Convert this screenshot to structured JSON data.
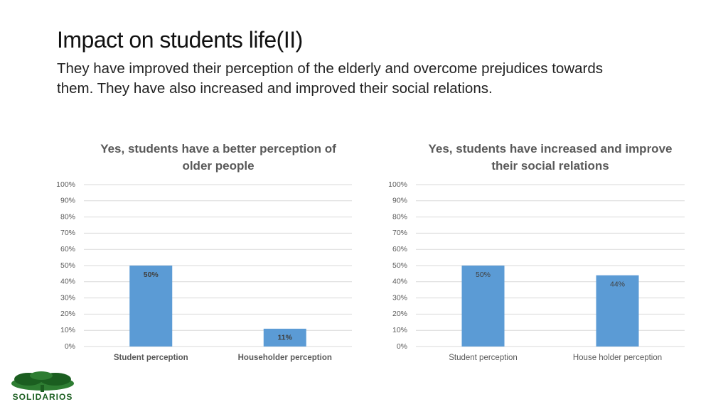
{
  "header": {
    "title": "Impact on students life(II)",
    "subtitle": "They have improved their perception of the elderly and overcome prejudices towards them. They have also increased and improved their social relations."
  },
  "logo": {
    "text": "SOLIDARIOS"
  },
  "chart_data": [
    {
      "type": "bar",
      "title": "Yes, students have a better perception of older people",
      "categories": [
        "Student perception",
        "Householder perception"
      ],
      "values": [
        50,
        11
      ],
      "value_labels": [
        "50%",
        "11%"
      ],
      "color": "#5b9bd5",
      "ylim": [
        0,
        100
      ],
      "yticks": [
        {
          "value": 0,
          "label": "0%"
        },
        {
          "value": 10,
          "label": "10%"
        },
        {
          "value": 20,
          "label": "20%"
        },
        {
          "value": 30,
          "label": "30%"
        },
        {
          "value": 40,
          "label": "40%"
        },
        {
          "value": 50,
          "label": "50%"
        },
        {
          "value": 60,
          "label": "60%"
        },
        {
          "value": 70,
          "label": "70%"
        },
        {
          "value": 80,
          "label": "80%"
        },
        {
          "value": 90,
          "label": "90%"
        },
        {
          "value": 100,
          "label": "100%"
        }
      ],
      "grid": true
    },
    {
      "type": "bar",
      "title": "Yes, students have increased and improve their social relations",
      "categories": [
        "Student perception",
        "House holder perception"
      ],
      "values": [
        50,
        44
      ],
      "value_labels": [
        "50%",
        "44%"
      ],
      "color": "#5b9bd5",
      "ylim": [
        0,
        100
      ],
      "yticks": [
        {
          "value": 0,
          "label": "0%"
        },
        {
          "value": 10,
          "label": "10%"
        },
        {
          "value": 20,
          "label": "20%"
        },
        {
          "value": 30,
          "label": "30%"
        },
        {
          "value": 40,
          "label": "40%"
        },
        {
          "value": 50,
          "label": "50%"
        },
        {
          "value": 60,
          "label": "60%"
        },
        {
          "value": 70,
          "label": "70%"
        },
        {
          "value": 80,
          "label": "80%"
        },
        {
          "value": 90,
          "label": "90%"
        },
        {
          "value": 100,
          "label": "100%"
        }
      ],
      "grid": true
    }
  ]
}
